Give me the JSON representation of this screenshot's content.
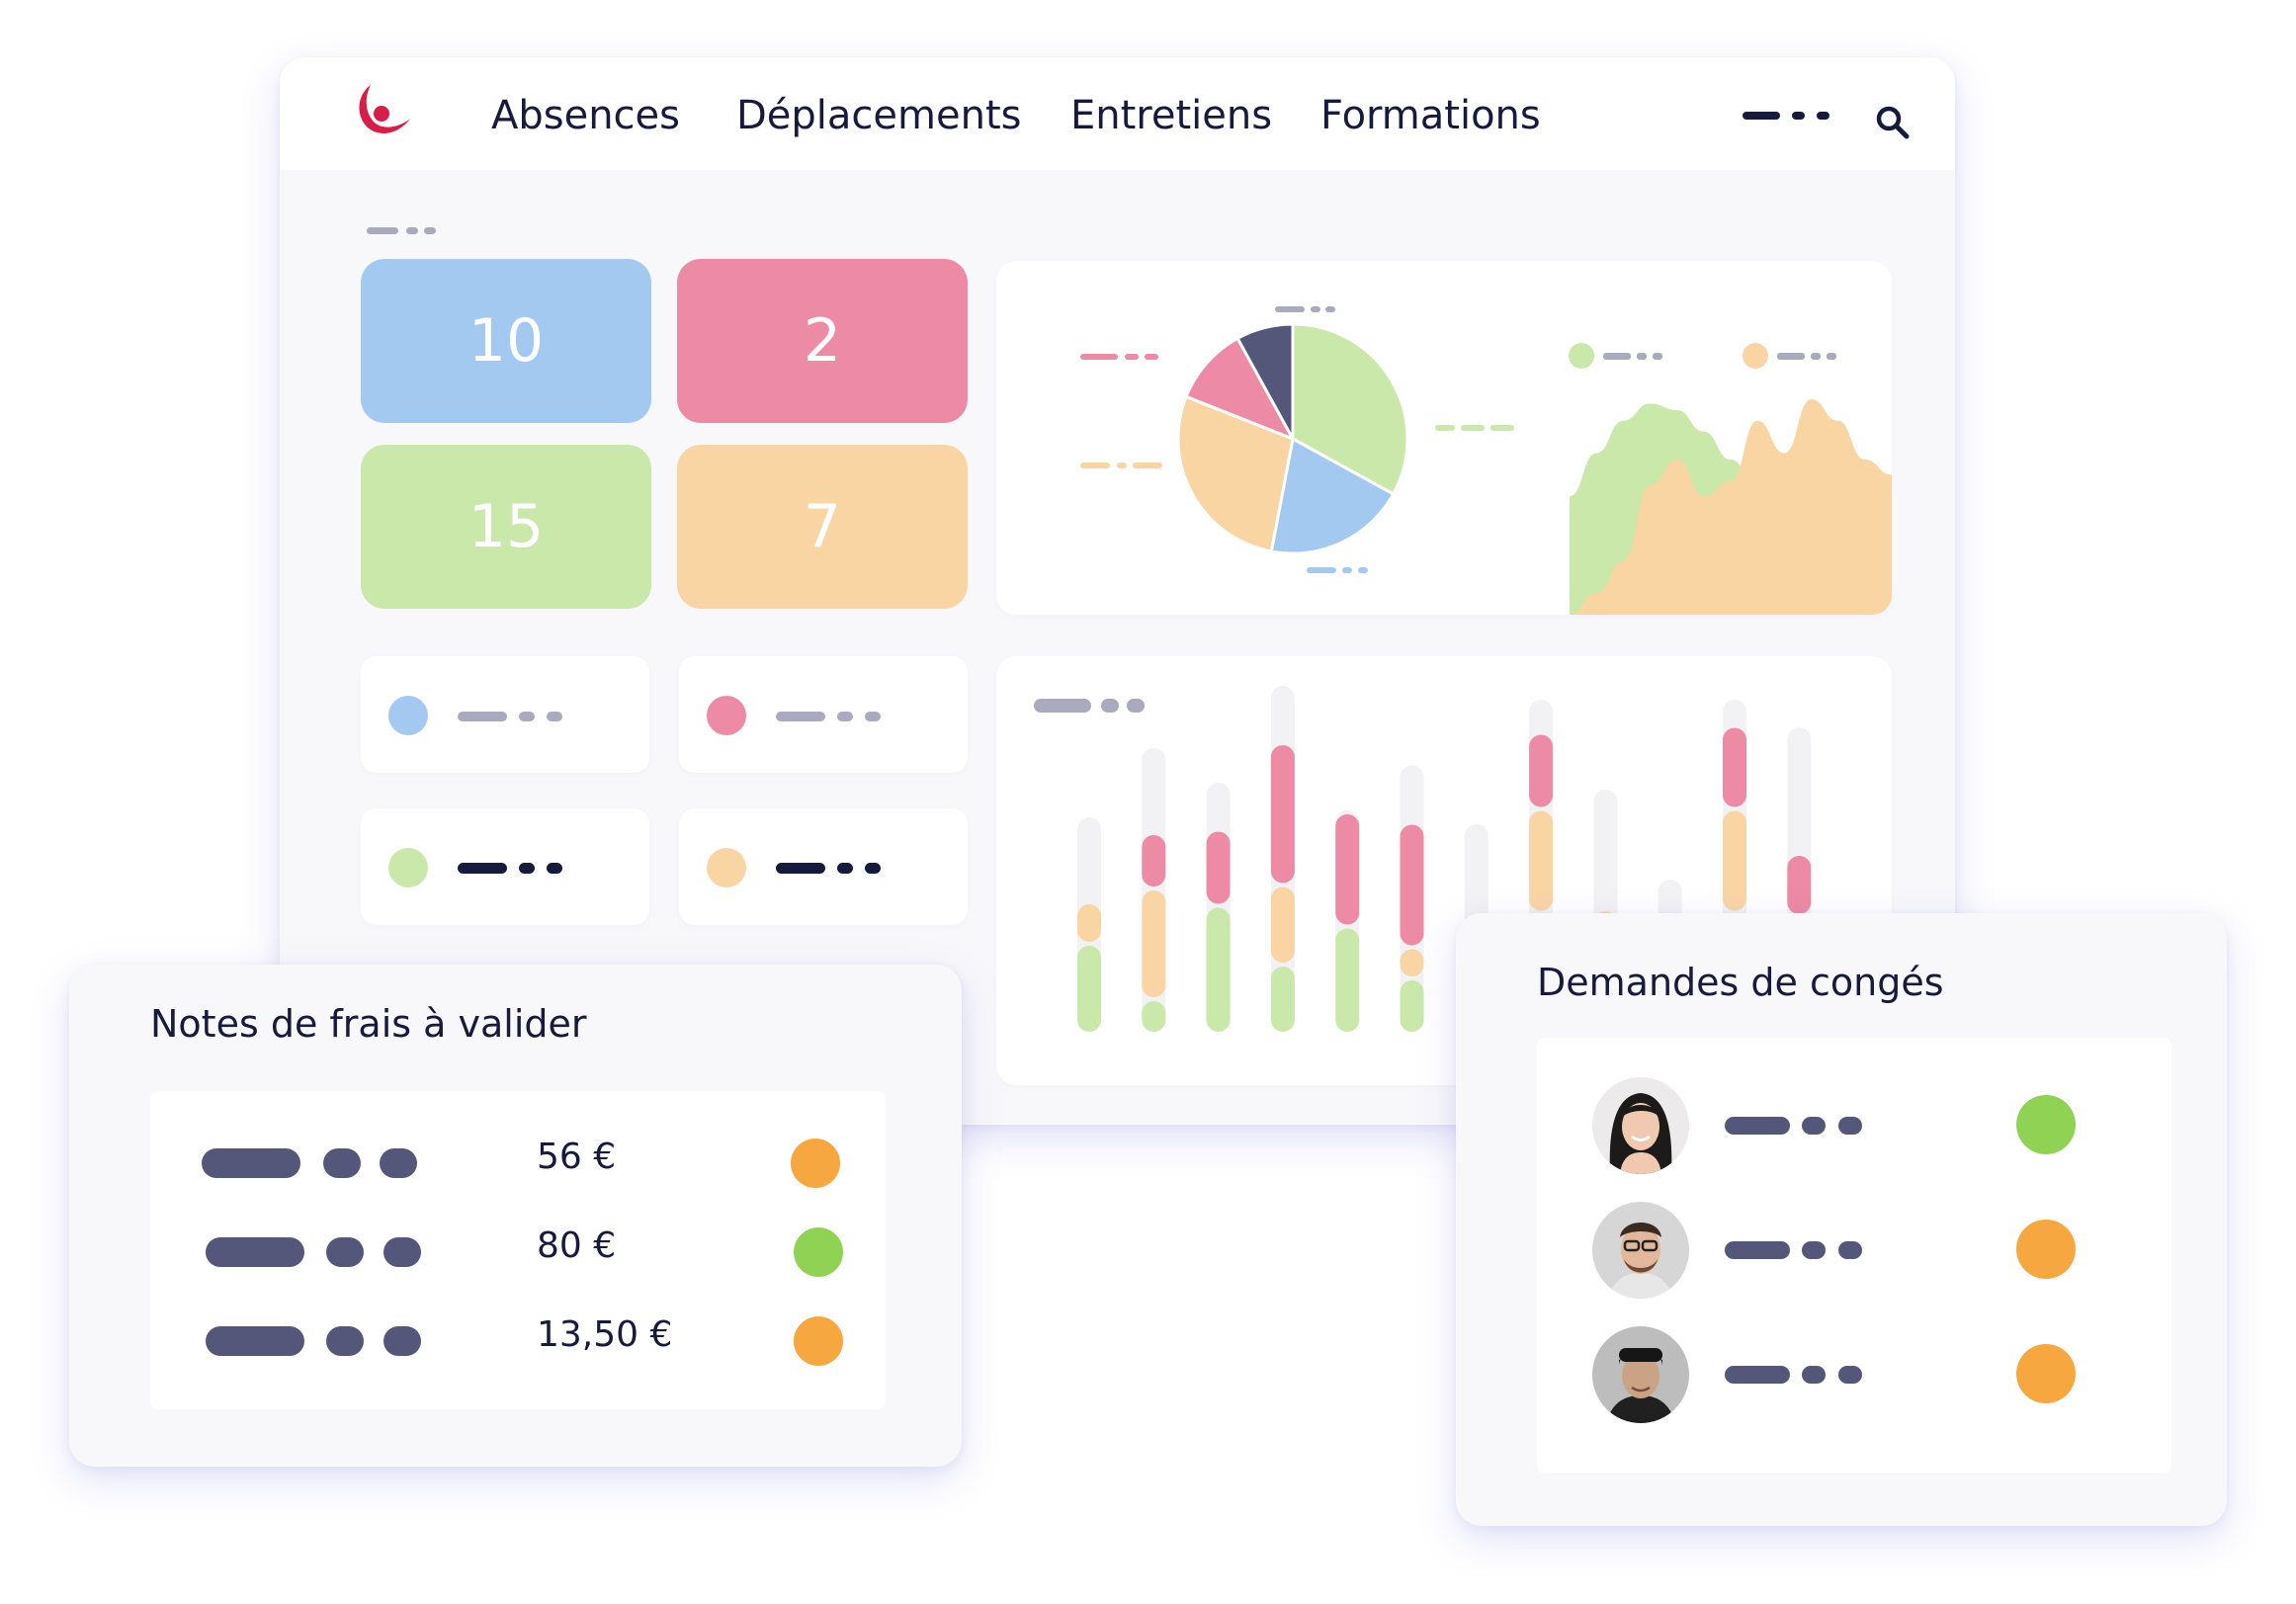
{
  "nav": {
    "items": [
      "Absences",
      "Déplacements",
      "Entretiens",
      "Formations"
    ]
  },
  "stats": {
    "tiles": [
      {
        "value": "10",
        "color": "#a3c9f1"
      },
      {
        "value": "2",
        "color": "#ed8aa5"
      },
      {
        "value": "15",
        "color": "#c9e8aa"
      },
      {
        "value": "7",
        "color": "#fad5a4"
      }
    ]
  },
  "legend_cards": [
    {
      "color": "#a3c9f1"
    },
    {
      "color": "#ed8aa5"
    },
    {
      "color": "#c9e8aa"
    },
    {
      "color": "#fad5a4"
    }
  ],
  "chart_data": [
    {
      "type": "pie",
      "slices": [
        {
          "value": 33,
          "color": "#c9e8aa"
        },
        {
          "value": 20,
          "color": "#a3c9f1"
        },
        {
          "value": 28,
          "color": "#fad5a4"
        },
        {
          "value": 11,
          "color": "#ed8aa5"
        },
        {
          "value": 8,
          "color": "#545779"
        }
      ]
    },
    {
      "type": "area",
      "x": [
        0,
        1,
        2,
        3,
        4,
        5,
        6,
        7,
        8,
        9,
        10,
        11,
        12
      ],
      "series": [
        {
          "color": "#c9e8aa",
          "values": [
            0.55,
            0.75,
            0.9,
            0.98,
            0.95,
            0.85,
            0.72,
            0.6,
            0.5,
            0.45,
            0.42,
            0.4,
            0.38
          ]
        },
        {
          "color": "#fad5a4",
          "values": [
            0.0,
            0.1,
            0.25,
            0.6,
            0.72,
            0.55,
            0.62,
            0.9,
            0.75,
            1.0,
            0.9,
            0.72,
            0.65
          ]
        }
      ]
    },
    {
      "type": "bar",
      "stacked": true,
      "series_colors": {
        "green": "#c9e8aa",
        "orange": "#fad5a4",
        "pink": "#ed8aa5"
      },
      "columns": [
        {
          "total": 0.62,
          "green": 0.26,
          "orange": 0.12,
          "pink": 0.0
        },
        {
          "total": 0.82,
          "green": 0.1,
          "orange": 0.32,
          "pink": 0.16
        },
        {
          "total": 0.72,
          "green": 0.37,
          "orange": 0.0,
          "pink": 0.22
        },
        {
          "total": 1.0,
          "green": 0.2,
          "orange": 0.23,
          "pink": 0.41
        },
        {
          "total": 0.64,
          "green": 0.31,
          "orange": 0.0,
          "pink": 0.33
        },
        {
          "total": 0.77,
          "green": 0.16,
          "orange": 0.09,
          "pink": 0.36
        },
        {
          "total": 0.6,
          "green": 0.0,
          "orange": 0.0,
          "pink": 0.12
        },
        {
          "total": 0.96,
          "green": 0.35,
          "orange": 0.3,
          "pink": 0.22
        },
        {
          "total": 0.7,
          "green": 0.22,
          "orange": 0.14,
          "pink": 0.0
        },
        {
          "total": 0.44,
          "green": 0.0,
          "orange": 0.0,
          "pink": 0.0
        },
        {
          "total": 0.96,
          "green": 0.35,
          "orange": 0.3,
          "pink": 0.24
        },
        {
          "total": 0.88,
          "green": 0.18,
          "orange": 0.16,
          "pink": 0.18
        }
      ]
    }
  ],
  "expenses": {
    "title": "Notes de frais à valider",
    "rows": [
      {
        "amount": "56 €",
        "status_color": "#f6a73f"
      },
      {
        "amount": "80 €",
        "status_color": "#90d254"
      },
      {
        "amount": "13,50 €",
        "status_color": "#f6a73f"
      }
    ]
  },
  "leaves": {
    "title": "Demandes de congés",
    "rows": [
      {
        "status_color": "#90d254"
      },
      {
        "status_color": "#f6a73f"
      },
      {
        "status_color": "#f6a73f"
      }
    ]
  }
}
